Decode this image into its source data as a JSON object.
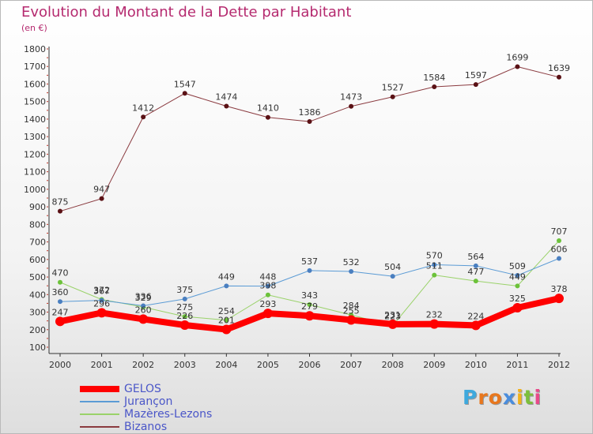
{
  "title": "Evolution du Montant de la Dette par Habitant",
  "subtitle": "(en €)",
  "logo": {
    "text": "Proxiti",
    "letters": [
      {
        "ch": "P",
        "color": "#3fa9dd"
      },
      {
        "ch": "r",
        "color": "#e8771e"
      },
      {
        "ch": "o",
        "color": "#e8771e"
      },
      {
        "ch": "x",
        "color": "#4a8ddd"
      },
      {
        "ch": "i",
        "color": "#f2b21a"
      },
      {
        "ch": "t",
        "color": "#7cbf3c"
      },
      {
        "ch": "i",
        "color": "#e84a8a"
      }
    ]
  },
  "chart_data": {
    "type": "line",
    "title": "Evolution du Montant de la Dette par Habitant",
    "ylabel": "(en €)",
    "xlabel": "",
    "x": [
      "2000",
      "2001",
      "2002",
      "2003",
      "2004",
      "2005",
      "2006",
      "2007",
      "2008",
      "2009",
      "2010",
      "2011",
      "2012"
    ],
    "ylim": [
      100,
      1800
    ],
    "yticks": [
      100,
      200,
      300,
      400,
      500,
      600,
      700,
      800,
      900,
      1000,
      1100,
      1200,
      1300,
      1400,
      1500,
      1600,
      1700,
      1800
    ],
    "grid": false,
    "legend": "bottom-left",
    "series": [
      {
        "name": "GELOS",
        "color": "#ff0000",
        "values": [
          247,
          296,
          260,
          226,
          201,
          293,
          279,
          255,
          231,
          232,
          224,
          325,
          378
        ]
      },
      {
        "name": "Jurançon",
        "color": "#5b9bd5",
        "values": [
          360,
          367,
          336,
          375,
          449,
          448,
          537,
          532,
          504,
          570,
          564,
          509,
          606
        ]
      },
      {
        "name": "Mazères-Lezons",
        "color": "#8fd14f",
        "values": [
          470,
          372,
          329,
          275,
          254,
          398,
          343,
          284,
          223,
          511,
          477,
          449,
          707
        ]
      },
      {
        "name": "Bizanos",
        "color": "#7a1f24",
        "values": [
          875,
          947,
          1412,
          1547,
          1474,
          1410,
          1386,
          1473,
          1527,
          1584,
          1597,
          1699,
          1639
        ]
      }
    ]
  }
}
